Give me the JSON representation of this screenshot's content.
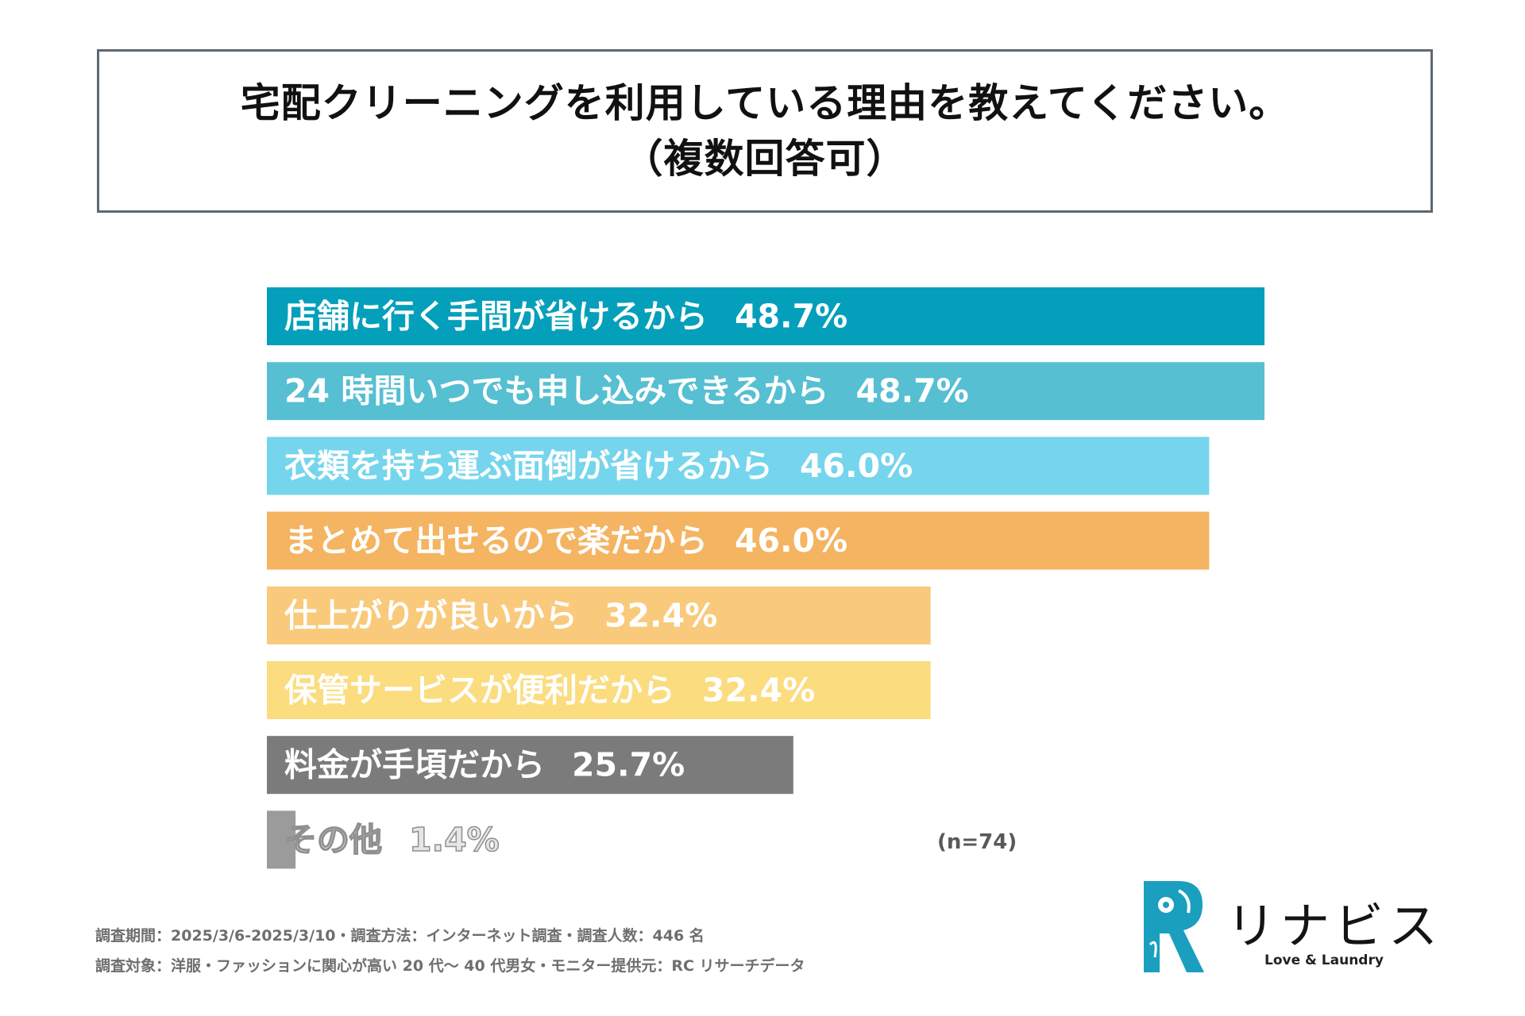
{
  "title": {
    "line1": "宅配クリーニングを利用している理由を教えてください。",
    "line2": "（複数回答可）"
  },
  "chart_data": {
    "type": "bar",
    "orientation": "horizontal",
    "categories": [
      "店舗に行く手間が省けるから",
      "24 時間いつでも申し込みできるから",
      "衣類を持ち運ぶ面倒が省けるから",
      "まとめて出せるので楽だから",
      "仕上がりが良いから",
      "保管サービスが便利だから",
      "料金が手頃だから",
      "その他"
    ],
    "values": [
      48.7,
      48.7,
      46.0,
      46.0,
      32.4,
      32.4,
      25.7,
      1.4
    ],
    "value_labels": [
      "48.7%",
      "48.7%",
      "46.0%",
      "46.0%",
      "32.4%",
      "32.4%",
      "25.7%",
      "1.4%"
    ],
    "colors": [
      "#049fbb",
      "#56bfd2",
      "#75d5ec",
      "#f4b461",
      "#f9ca7b",
      "#fbdc7f",
      "#7b7b7b",
      "#9b9b9b"
    ],
    "xlim": [
      0,
      48.7
    ],
    "unit": "%"
  },
  "sample_note": "(n=74)",
  "footer": {
    "line1": "調査期間：2025/3/6-2025/3/10・調査方法：インターネット調査・調査人数：446 名",
    "line2": "調査対象：洋服・ファッションに関心が高い 20 代〜 40 代男女・モニター提供元：RC リサーチデータ"
  },
  "logo": {
    "name": "リナビス",
    "tagline": "Love & Laundry",
    "color": "#1a9fbf"
  }
}
